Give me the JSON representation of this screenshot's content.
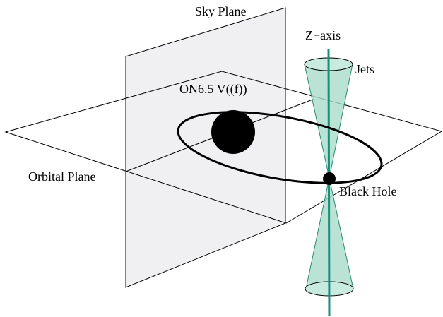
{
  "labels": {
    "sky_plane": "Sky Plane",
    "z_axis": "Z−axis",
    "jets": "Jets",
    "star": "ON6.5 V((f))",
    "orbital_plane": "Orbital Plane",
    "black_hole": "Black Hole"
  },
  "colors": {
    "background": "#ffffff",
    "line": "#000000",
    "sky_plane_fill": "#ebe9ee",
    "jet_fill": "#a9dccc",
    "jet_stroke": "#2a8a70",
    "z_axis": "#17907a",
    "star": "#000000",
    "black_hole": "#000000"
  }
}
